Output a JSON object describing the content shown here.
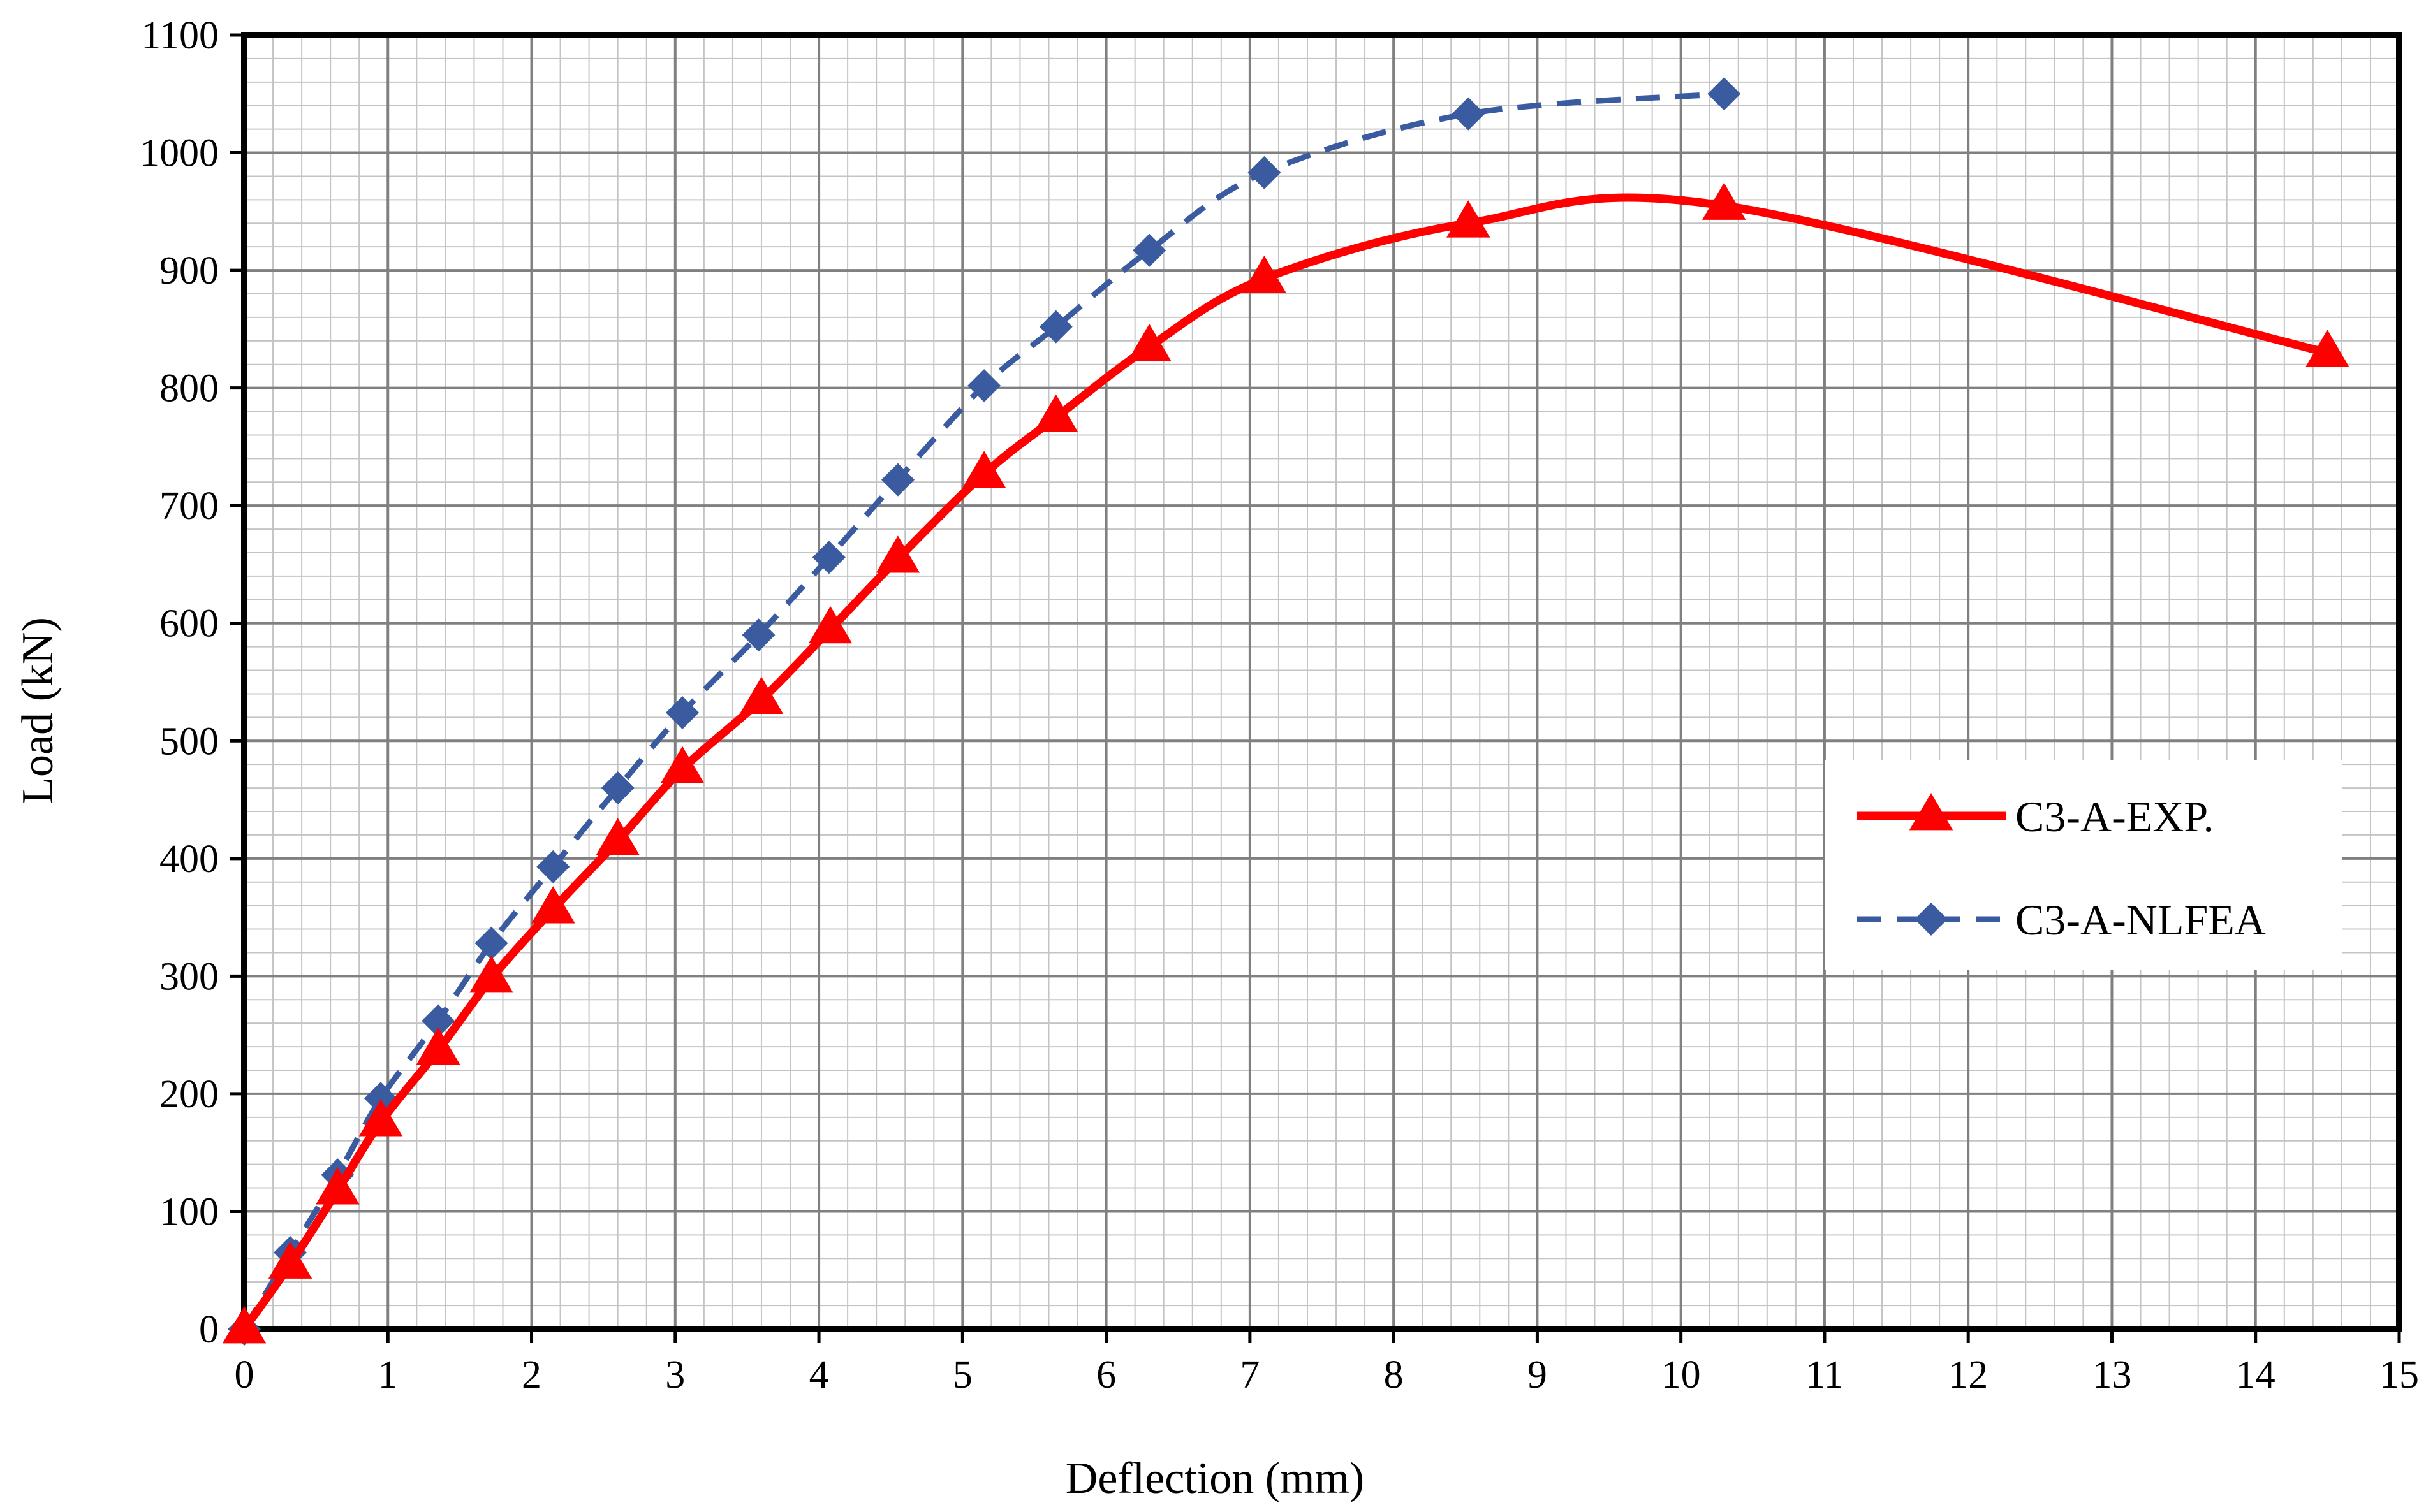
{
  "chart_data": {
    "type": "line",
    "title": "",
    "xlabel": "Deflection (mm)",
    "ylabel": "Load (kN)",
    "xlim": [
      0,
      15
    ],
    "ylim": [
      0,
      1100
    ],
    "x_ticks": [
      0,
      1,
      2,
      3,
      4,
      5,
      6,
      7,
      8,
      9,
      10,
      11,
      12,
      13,
      14,
      15
    ],
    "y_ticks": [
      0,
      100,
      200,
      300,
      400,
      500,
      600,
      700,
      800,
      900,
      1000,
      1100
    ],
    "x_tick_labels": [
      "0",
      "1",
      "2",
      "3",
      "4",
      "5",
      "6",
      "7",
      "8",
      "9",
      "10",
      "11",
      "12",
      "13",
      "14",
      "15"
    ],
    "y_tick_labels": [
      "0",
      "100",
      "200",
      "300",
      "400",
      "500",
      "600",
      "700",
      "800",
      "900",
      "1000",
      "1100"
    ],
    "grid": true,
    "legend_position": "right",
    "series": [
      {
        "name": "C3-A-EXP.",
        "color": "#ff0000",
        "line_style": "solid",
        "marker": "triangle",
        "x": [
          0,
          0.32,
          0.65,
          0.95,
          1.35,
          1.72,
          2.15,
          2.6,
          3.05,
          3.6,
          4.08,
          4.55,
          5.15,
          5.65,
          6.3,
          7.1,
          8.52,
          10.3,
          14.5
        ],
        "y": [
          0,
          55,
          118,
          176,
          237,
          298,
          357,
          415,
          476,
          535,
          595,
          655,
          727,
          775,
          835,
          893,
          940,
          955,
          830
        ]
      },
      {
        "name": "C3-A-NLFEA",
        "color": "#3a5ba0",
        "line_style": "dashed",
        "marker": "diamond",
        "x": [
          0,
          0.32,
          0.65,
          0.95,
          1.35,
          1.72,
          2.15,
          2.6,
          3.05,
          3.58,
          4.07,
          4.55,
          5.15,
          5.65,
          6.3,
          7.1,
          8.52,
          10.3
        ],
        "y": [
          0,
          65,
          131,
          196,
          262,
          328,
          393,
          460,
          524,
          590,
          656,
          722,
          802,
          852,
          917,
          983,
          1033,
          1050
        ]
      }
    ]
  }
}
